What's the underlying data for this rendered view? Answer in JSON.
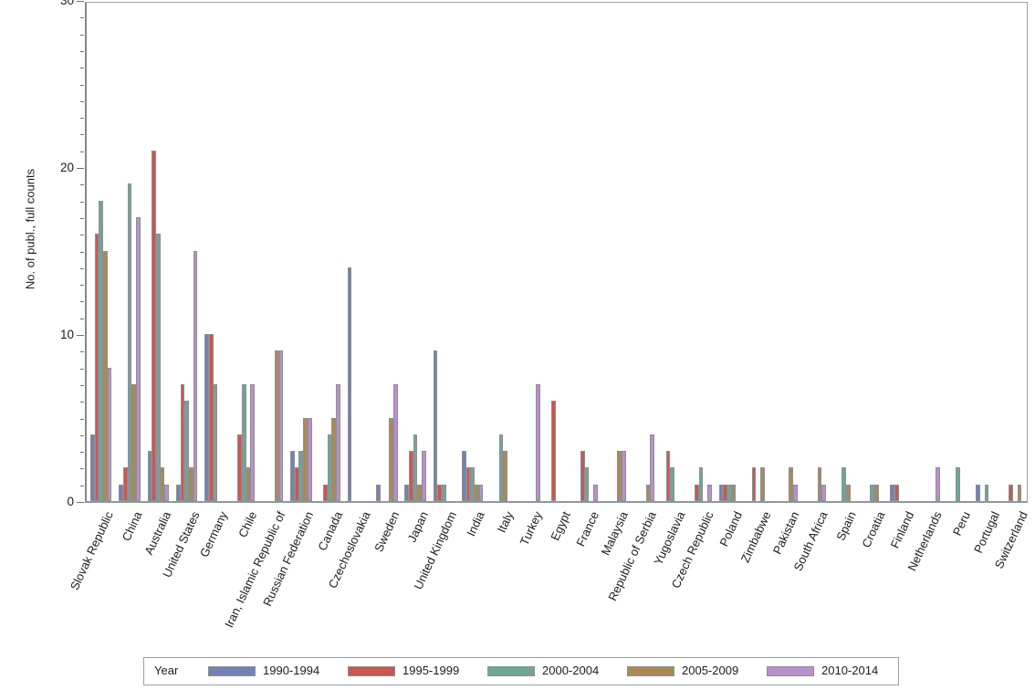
{
  "page": {
    "background": "#ffffff"
  },
  "chart_data": {
    "type": "bar",
    "title": "",
    "xlabel": "",
    "ylabel": "No. of publ., full counts",
    "ylim": [
      0,
      30
    ],
    "ytick_major_step": 10,
    "ytick_minor_step": 1,
    "ytick_labels": [
      "0",
      "10",
      "20",
      "30"
    ],
    "grid": false,
    "legend_position": "bottom",
    "legend_title": "Year",
    "frame_color": "#9aa0a8",
    "axis_color": "#85858a",
    "bar_outline_color": "#8e8e92",
    "text_color": "#1c1c1c",
    "categories": [
      "Slovak Republic",
      "China",
      "Australia",
      "United States",
      "Germany",
      "Chile",
      "Iran, Islamic Republic of",
      "Russian Federation",
      "Canada",
      "Czechoslovakia",
      "Sweden",
      "Japan",
      "United Kingdom",
      "India",
      "Italy",
      "Turkey",
      "Egypt",
      "France",
      "Malaysia",
      "Republic of Serbia",
      "Yugoslavia",
      "Czech Republic",
      "Poland",
      "Zimbabwe",
      "Pakistan",
      "South Africa",
      "Spain",
      "Croatia",
      "Finland",
      "Netherlands",
      "Peru",
      "Portugal",
      "Switzerland"
    ],
    "series": [
      {
        "name": "1990-1994",
        "color": "#7381b5",
        "values": [
          4,
          1,
          3,
          1,
          10,
          0,
          0,
          3,
          0,
          14,
          1,
          1,
          9,
          3,
          0,
          0,
          0,
          0,
          0,
          0,
          0,
          0,
          1,
          0,
          0,
          0,
          0,
          0,
          1,
          0,
          0,
          1,
          0
        ]
      },
      {
        "name": "1995-1999",
        "color": "#c75853",
        "values": [
          16,
          2,
          21,
          7,
          10,
          4,
          0,
          2,
          1,
          0,
          0,
          3,
          1,
          2,
          0,
          0,
          6,
          3,
          0,
          0,
          3,
          1,
          1,
          2,
          0,
          0,
          0,
          0,
          1,
          0,
          0,
          0,
          1
        ]
      },
      {
        "name": "2000-2004",
        "color": "#6fa69a",
        "values": [
          18,
          19,
          16,
          6,
          7,
          7,
          0,
          3,
          4,
          0,
          0,
          4,
          1,
          2,
          4,
          0,
          0,
          2,
          0,
          0,
          2,
          2,
          1,
          0,
          0,
          0,
          2,
          1,
          0,
          0,
          2,
          1,
          0
        ]
      },
      {
        "name": "2005-2009",
        "color": "#a98a57",
        "values": [
          15,
          7,
          2,
          2,
          0,
          2,
          9,
          5,
          5,
          0,
          5,
          1,
          0,
          1,
          3,
          0,
          0,
          0,
          3,
          1,
          0,
          0,
          1,
          2,
          2,
          2,
          1,
          1,
          0,
          0,
          0,
          0,
          1
        ]
      },
      {
        "name": "2010-2014",
        "color": "#ba90cc",
        "values": [
          8,
          17,
          1,
          15,
          0,
          7,
          9,
          5,
          7,
          0,
          7,
          3,
          0,
          1,
          0,
          7,
          0,
          1,
          3,
          4,
          0,
          1,
          0,
          0,
          1,
          1,
          0,
          0,
          0,
          2,
          0,
          0,
          0
        ]
      }
    ]
  }
}
